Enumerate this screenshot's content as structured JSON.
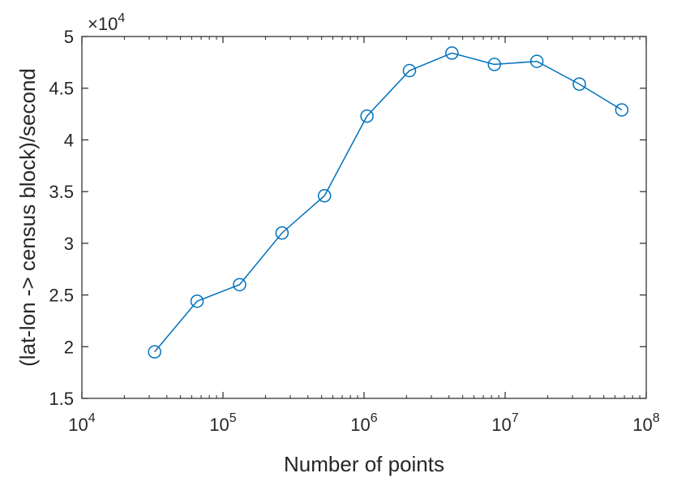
{
  "chart_data": {
    "type": "line",
    "xscale": "log",
    "xlabel": "Number of points",
    "ylabel": "(lat-lon -> census block)/second",
    "xlim": [
      10000,
      100000000
    ],
    "ylim": [
      15000,
      50000
    ],
    "y_exponent_label": "×10",
    "y_exponent_power": "4",
    "x_ticks": [
      {
        "value": 10000,
        "base": "10",
        "exp": "4"
      },
      {
        "value": 100000,
        "base": "10",
        "exp": "5"
      },
      {
        "value": 1000000,
        "base": "10",
        "exp": "6"
      },
      {
        "value": 10000000,
        "base": "10",
        "exp": "7"
      },
      {
        "value": 100000000,
        "base": "10",
        "exp": "8"
      }
    ],
    "y_ticks": [
      {
        "value": 15000,
        "label": "1.5"
      },
      {
        "value": 20000,
        "label": "2"
      },
      {
        "value": 25000,
        "label": "2.5"
      },
      {
        "value": 30000,
        "label": "3"
      },
      {
        "value": 35000,
        "label": "3.5"
      },
      {
        "value": 40000,
        "label": "4"
      },
      {
        "value": 45000,
        "label": "4.5"
      },
      {
        "value": 50000,
        "label": "5"
      }
    ],
    "grid": false,
    "series": [
      {
        "color": "#0072BD",
        "marker": "circle",
        "x": [
          32768,
          65536,
          131072,
          262144,
          524288,
          1048576,
          2097152,
          4194304,
          8388608,
          16777216,
          33554432,
          67108864
        ],
        "y": [
          19500,
          24400,
          26000,
          31000,
          34600,
          42300,
          46700,
          48400,
          47300,
          47600,
          45400,
          42900
        ]
      }
    ]
  }
}
